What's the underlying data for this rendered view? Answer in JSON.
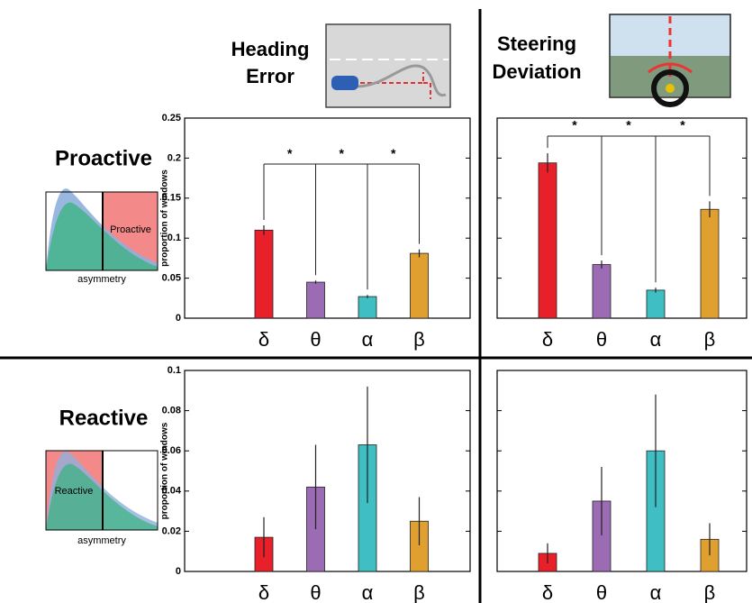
{
  "columns": [
    {
      "title": [
        "Heading",
        "Error"
      ]
    },
    {
      "title": [
        "Steering",
        "Deviation"
      ]
    }
  ],
  "rows": [
    {
      "label": "Proactive",
      "inset_label": "Proactive",
      "inset_xlabel": "asymmetry"
    },
    {
      "label": "Reactive",
      "inset_label": "Reactive",
      "inset_xlabel": "asymmetry"
    }
  ],
  "chart_data": [
    {
      "type": "bar",
      "categories": [
        "δ",
        "θ",
        "α",
        "β"
      ],
      "values": [
        0.11,
        0.045,
        0.027,
        0.081
      ],
      "errors": [
        0.006,
        0.002,
        0.002,
        0.005
      ],
      "colors": [
        "#e8202a",
        "#9b6bb3",
        "#3fbfc4",
        "#e0a030"
      ],
      "ylim": [
        0,
        0.25
      ],
      "yticks": [
        0,
        0.05,
        0.1,
        0.15,
        0.2,
        0.25
      ],
      "ytick_labels": true,
      "ylabel": "proportion of windows",
      "significance": {
        "reference": "δ",
        "labels": [
          "*",
          "*",
          "*"
        ]
      }
    },
    {
      "type": "bar",
      "categories": [
        "δ",
        "θ",
        "α",
        "β"
      ],
      "values": [
        0.194,
        0.067,
        0.035,
        0.136
      ],
      "errors": [
        0.012,
        0.005,
        0.003,
        0.01
      ],
      "colors": [
        "#e8202a",
        "#9b6bb3",
        "#3fbfc4",
        "#e0a030"
      ],
      "ylim": [
        0,
        0.25
      ],
      "yticks": [
        0,
        0.05,
        0.1,
        0.15,
        0.2,
        0.25
      ],
      "ytick_labels": false,
      "significance": {
        "reference": "δ",
        "labels": [
          "*",
          "*",
          "*"
        ]
      }
    },
    {
      "type": "bar",
      "categories": [
        "δ",
        "θ",
        "α",
        "β"
      ],
      "values": [
        0.017,
        0.042,
        0.063,
        0.025
      ],
      "errors": [
        0.01,
        0.021,
        0.029,
        0.012
      ],
      "colors": [
        "#e8202a",
        "#9b6bb3",
        "#3fbfc4",
        "#e0a030"
      ],
      "ylim": [
        0,
        0.1
      ],
      "yticks": [
        0,
        0.02,
        0.04,
        0.06,
        0.08,
        0.1
      ],
      "ytick_labels": true,
      "ylabel": "proportion of windows"
    },
    {
      "type": "bar",
      "categories": [
        "δ",
        "θ",
        "α",
        "β"
      ],
      "values": [
        0.009,
        0.035,
        0.06,
        0.016
      ],
      "errors": [
        0.005,
        0.017,
        0.028,
        0.008
      ],
      "colors": [
        "#e8202a",
        "#9b6bb3",
        "#3fbfc4",
        "#e0a030"
      ],
      "ylim": [
        0,
        0.1
      ],
      "yticks": [
        0,
        0.02,
        0.04,
        0.06,
        0.08,
        0.1
      ],
      "ytick_labels": false
    }
  ]
}
